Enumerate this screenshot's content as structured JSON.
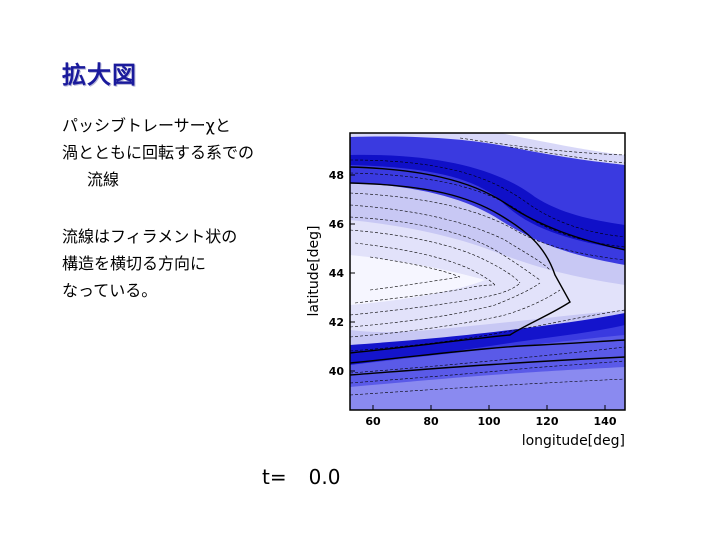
{
  "slide": {
    "title": "拡大図",
    "paragraph1": [
      "パッシブトレーサーχと",
      "渦とともに回転する系での",
      "流線"
    ],
    "paragraph2": [
      "流線はフィラメント状の",
      "構造を横切る方向に",
      "なっている。"
    ],
    "time_label": "t=",
    "time_value": "0.0"
  },
  "chart_data": {
    "type": "contour",
    "xlabel": "longitude[deg]",
    "ylabel": "latitude[deg]",
    "xlim": [
      52,
      147
    ],
    "ylim": [
      38.4,
      49.9
    ],
    "xticks": [
      60,
      80,
      100,
      120,
      140
    ],
    "yticks": [
      40,
      42,
      44,
      46,
      48
    ],
    "colors": {
      "fill_dark": "#1414cc",
      "fill_light": "#f0f0ff",
      "contour": "#000000"
    }
  }
}
